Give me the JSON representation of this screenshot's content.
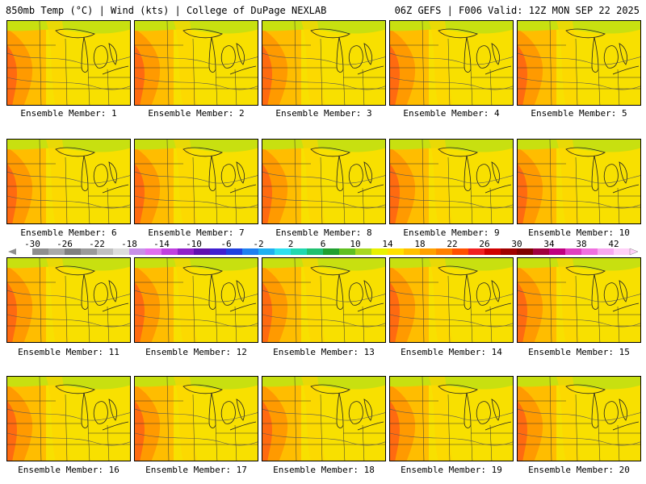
{
  "header": {
    "left": "850mb Temp (°C) | Wind (kts) | College of DuPage NEXLAB",
    "right": "06Z GEFS | F006 Valid: 12Z MON SEP 22 2025"
  },
  "panels": [
    "Ensemble Member: 1",
    "Ensemble Member: 2",
    "Ensemble Member: 3",
    "Ensemble Member: 4",
    "Ensemble Member: 5",
    "Ensemble Member: 6",
    "Ensemble Member: 7",
    "Ensemble Member: 8",
    "Ensemble Member: 9",
    "Ensemble Member: 10",
    "Ensemble Member: 11",
    "Ensemble Member: 12",
    "Ensemble Member: 13",
    "Ensemble Member: 14",
    "Ensemble Member: 15",
    "Ensemble Member: 16",
    "Ensemble Member: 17",
    "Ensemble Member: 18",
    "Ensemble Member: 19",
    "Ensemble Member: 20"
  ],
  "colorbar": {
    "labels": [
      "-30",
      "-26",
      "-22",
      "-18",
      "-14",
      "-10",
      "-6",
      "-2",
      "2",
      "6",
      "10",
      "14",
      "18",
      "22",
      "26",
      "30",
      "34",
      "38",
      "42"
    ],
    "colors": [
      "#ffffff",
      "#8f8f8f",
      "#a9a9a9",
      "#808080",
      "#9a9a9a",
      "#c0c0c0",
      "#dcdcdc",
      "#c890e8",
      "#e070f0",
      "#c040e0",
      "#9020c8",
      "#6010b0",
      "#4020d0",
      "#2040e0",
      "#2080f0",
      "#20b0f0",
      "#30e0f0",
      "#20d8b0",
      "#20c070",
      "#20a030",
      "#60c020",
      "#a8d820",
      "#e8f000",
      "#ffe000",
      "#ffc000",
      "#ffa000",
      "#ff8000",
      "#ff5000",
      "#f02020",
      "#d00000",
      "#a00000",
      "#800000",
      "#a00040",
      "#c00080",
      "#e040c0",
      "#f070e0",
      "#f8a8f0",
      "#ffd0f8"
    ]
  }
}
